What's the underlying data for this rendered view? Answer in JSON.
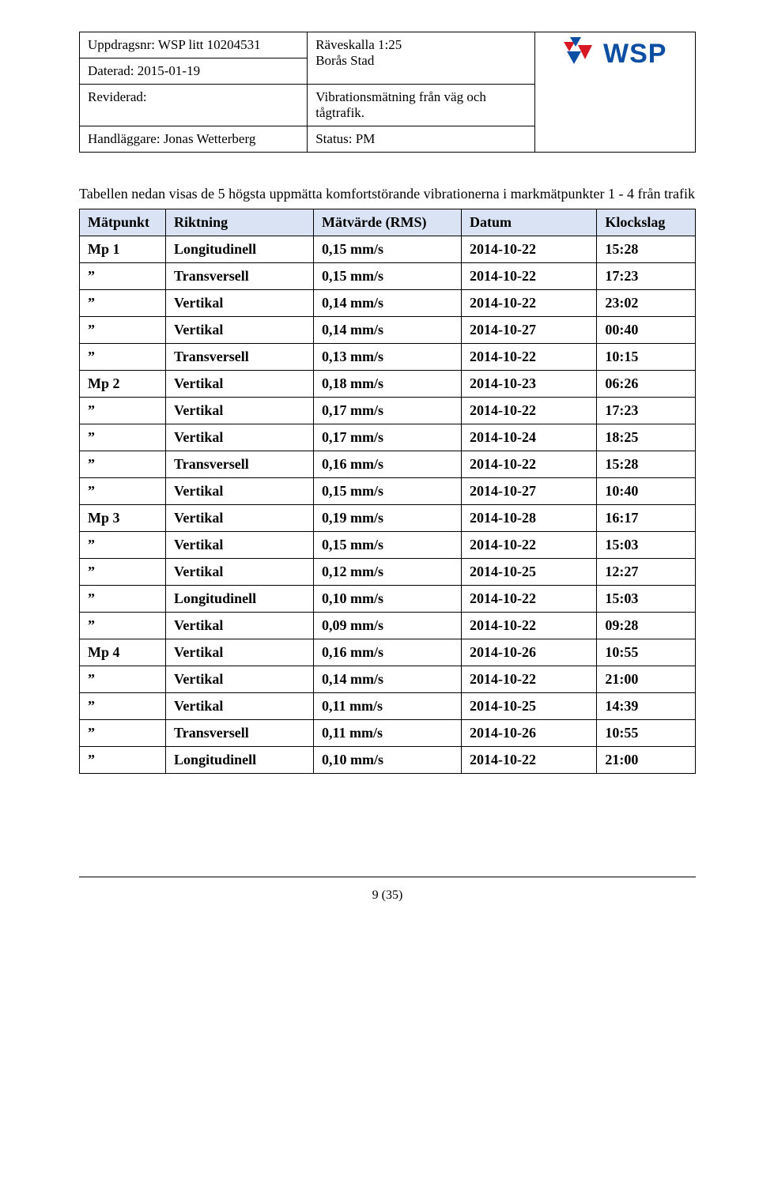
{
  "header": {
    "uppdrag": "Uppdragsnr: WSP litt 10204531",
    "daterad": "Daterad: 2015-01-19",
    "reviderad": "Reviderad:",
    "handlaggare": "Handläggare: Jonas Wetterberg",
    "title1": "Räveskalla 1:25",
    "title2": "Borås Stad",
    "subtitle": "Vibrationsmätning från väg och tågtrafik.",
    "status": "Status:  PM",
    "logo_text": "WSP",
    "logo_colors": {
      "blue": "#0b4ea2",
      "red": "#d71925"
    }
  },
  "intro": "Tabellen nedan visas de 5 högsta uppmätta komfortstörande vibrationerna i markmätpunkter  1 - 4 från trafik",
  "table": {
    "header_bg": "#d9e3f3",
    "columns": [
      "Mätpunkt",
      "Riktning",
      "Mätvärde (RMS)",
      "Datum",
      "Klockslag"
    ],
    "rows": [
      [
        "Mp 1",
        "Longitudinell",
        "0,15 mm/s",
        "2014-10-22",
        "15:28"
      ],
      [
        "”",
        "Transversell",
        "0,15 mm/s",
        "2014-10-22",
        "17:23"
      ],
      [
        "”",
        "Vertikal",
        "0,14 mm/s",
        "2014-10-22",
        "23:02"
      ],
      [
        "”",
        "Vertikal",
        "0,14 mm/s",
        "2014-10-27",
        "00:40"
      ],
      [
        "”",
        "Transversell",
        "0,13 mm/s",
        "2014-10-22",
        "10:15"
      ],
      [
        "Mp 2",
        "Vertikal",
        "0,18 mm/s",
        "2014-10-23",
        "06:26"
      ],
      [
        "”",
        "Vertikal",
        "0,17 mm/s",
        "2014-10-22",
        "17:23"
      ],
      [
        "”",
        "Vertikal",
        "0,17 mm/s",
        "2014-10-24",
        "18:25"
      ],
      [
        "”",
        "Transversell",
        "0,16 mm/s",
        "2014-10-22",
        "15:28"
      ],
      [
        "”",
        "Vertikal",
        "0,15 mm/s",
        "2014-10-27",
        "10:40"
      ],
      [
        "Mp 3",
        "Vertikal",
        "0,19 mm/s",
        "2014-10-28",
        "16:17"
      ],
      [
        "”",
        "Vertikal",
        "0,15 mm/s",
        "2014-10-22",
        "15:03"
      ],
      [
        "”",
        "Vertikal",
        "0,12 mm/s",
        "2014-10-25",
        "12:27"
      ],
      [
        "”",
        "Longitudinell",
        "0,10 mm/s",
        "2014-10-22",
        "15:03"
      ],
      [
        "”",
        "Vertikal",
        "0,09 mm/s",
        "2014-10-22",
        "09:28"
      ],
      [
        "Mp 4",
        "Vertikal",
        "0,16 mm/s",
        "2014-10-26",
        "10:55"
      ],
      [
        "”",
        "Vertikal",
        "0,14 mm/s",
        "2014-10-22",
        "21:00"
      ],
      [
        "”",
        "Vertikal",
        "0,11 mm/s",
        "2014-10-25",
        "14:39"
      ],
      [
        "”",
        "Transversell",
        "0,11 mm/s",
        "2014-10-26",
        "10:55"
      ],
      [
        "”",
        "Longitudinell",
        "0,10 mm/s",
        "2014-10-22",
        "21:00"
      ]
    ]
  },
  "footer": "9 (35)"
}
